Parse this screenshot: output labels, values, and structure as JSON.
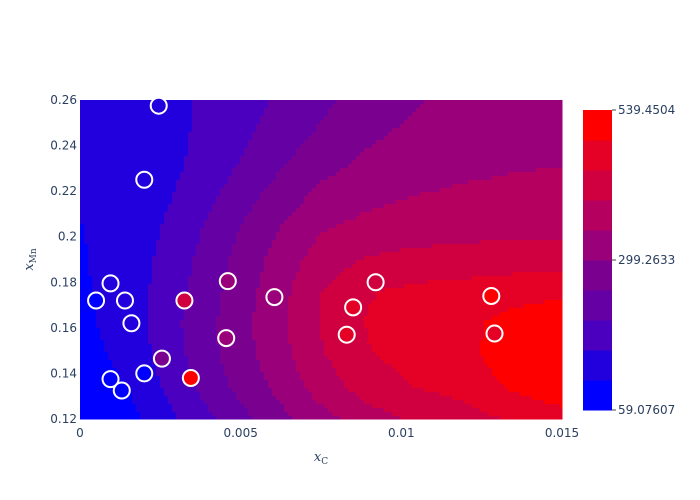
{
  "chart_data": {
    "type": "contour",
    "x_axis": {
      "label": "x",
      "label_subscript": "C",
      "range": [
        0,
        0.015
      ],
      "ticks": [
        0,
        0.005,
        0.01,
        0.015
      ],
      "tick_labels": [
        "0",
        "0.005",
        "0.01",
        "0.015"
      ]
    },
    "y_axis": {
      "label": "x",
      "label_subscript": "Mn",
      "range": [
        0.12,
        0.26
      ],
      "ticks": [
        0.12,
        0.14,
        0.16,
        0.18,
        0.2,
        0.22,
        0.24,
        0.26
      ],
      "tick_labels": [
        "0.12",
        "0.14",
        "0.16",
        "0.18",
        "0.2",
        "0.22",
        "0.24",
        "0.26"
      ]
    },
    "colorbar": {
      "min": 59.07607,
      "max": 539.4504,
      "tick_labels": [
        "539.4504",
        "299.2633",
        "59.07607"
      ],
      "tick_values": [
        539.4504,
        299.2633,
        59.07607
      ],
      "colors": [
        "#0000ff",
        "#2200dd",
        "#4a00be",
        "#6500a5",
        "#7a0090",
        "#99007a",
        "#b50060",
        "#d00040",
        "#e50025",
        "#ff0000"
      ]
    },
    "contours": {
      "level_count": 10,
      "x_grid": [
        0,
        0.0015,
        0.003,
        0.0045,
        0.006,
        0.0075,
        0.009,
        0.0105,
        0.012,
        0.0135,
        0.015
      ],
      "y_grid": [
        0.12,
        0.134,
        0.148,
        0.162,
        0.176,
        0.19,
        0.204,
        0.218,
        0.232,
        0.246,
        0.26
      ],
      "z": [
        [
          59,
          90,
          155,
          215,
          275,
          330,
          375,
          405,
          425,
          450,
          470
        ],
        [
          75,
          108,
          175,
          245,
          305,
          370,
          420,
          445,
          460,
          500,
          525
        ],
        [
          88,
          122,
          190,
          260,
          320,
          390,
          440,
          462,
          478,
          520,
          540
        ],
        [
          96,
          130,
          196,
          262,
          328,
          398,
          448,
          468,
          480,
          510,
          525
        ],
        [
          100,
          130,
          188,
          255,
          320,
          395,
          440,
          455,
          462,
          472,
          480
        ],
        [
          103,
          128,
          180,
          245,
          310,
          370,
          400,
          410,
          415,
          420,
          422
        ],
        [
          106,
          124,
          170,
          232,
          292,
          342,
          362,
          372,
          377,
          380,
          382
        ],
        [
          110,
          120,
          158,
          210,
          265,
          312,
          335,
          348,
          355,
          360,
          362
        ],
        [
          114,
          122,
          148,
          190,
          238,
          282,
          310,
          326,
          336,
          342,
          346
        ],
        [
          118,
          126,
          146,
          178,
          218,
          258,
          290,
          310,
          322,
          330,
          336
        ],
        [
          122,
          130,
          148,
          172,
          205,
          240,
          272,
          296,
          312,
          322,
          330
        ]
      ]
    },
    "points": [
      {
        "x": 0.00245,
        "y": 0.2575,
        "value": 140
      },
      {
        "x": 0.002,
        "y": 0.225,
        "value": 130
      },
      {
        "x": 0.0005,
        "y": 0.172,
        "value": 100
      },
      {
        "x": 0.00095,
        "y": 0.1795,
        "value": 110
      },
      {
        "x": 0.0014,
        "y": 0.172,
        "value": 120
      },
      {
        "x": 0.0016,
        "y": 0.162,
        "value": 115
      },
      {
        "x": 0.00095,
        "y": 0.1375,
        "value": 90
      },
      {
        "x": 0.0013,
        "y": 0.1325,
        "value": 85
      },
      {
        "x": 0.002,
        "y": 0.14,
        "value": 100
      },
      {
        "x": 0.00255,
        "y": 0.1465,
        "value": 280
      },
      {
        "x": 0.00325,
        "y": 0.172,
        "value": 400
      },
      {
        "x": 0.00345,
        "y": 0.138,
        "value": 510
      },
      {
        "x": 0.0046,
        "y": 0.1805,
        "value": 300
      },
      {
        "x": 0.00455,
        "y": 0.1555,
        "value": 330
      },
      {
        "x": 0.00605,
        "y": 0.1735,
        "value": 330
      },
      {
        "x": 0.0083,
        "y": 0.157,
        "value": 450
      },
      {
        "x": 0.0085,
        "y": 0.169,
        "value": 480
      },
      {
        "x": 0.0092,
        "y": 0.18,
        "value": 420
      },
      {
        "x": 0.0128,
        "y": 0.174,
        "value": 530
      },
      {
        "x": 0.0129,
        "y": 0.1575,
        "value": 490
      }
    ]
  }
}
